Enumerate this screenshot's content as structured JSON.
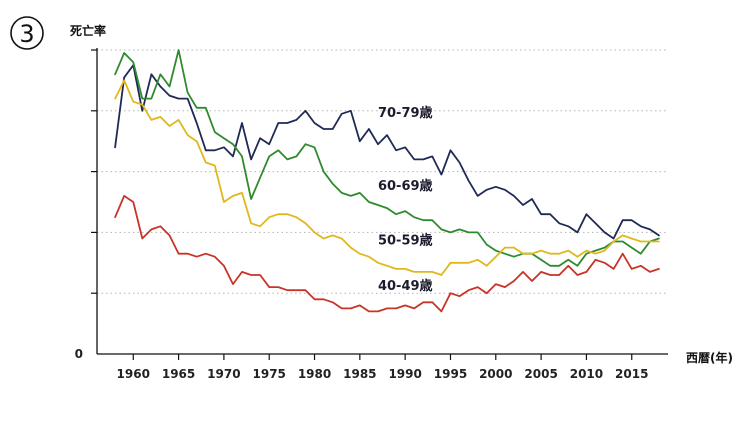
{
  "badge": "3",
  "chart_data": {
    "type": "line",
    "title": "",
    "ylabel": "死亡率",
    "xlabel": "西暦(年)",
    "y_zero_label": "0",
    "xlim": [
      1956,
      2019
    ],
    "ylim": [
      0,
      100
    ],
    "x_ticks": [
      1960,
      1965,
      1970,
      1975,
      1980,
      1985,
      1990,
      1995,
      2000,
      2005,
      2010,
      2015
    ],
    "y_gridlines": [
      20,
      40,
      60,
      80,
      100
    ],
    "grid": "dotted horizontal",
    "series": [
      {
        "name": "70-79歳",
        "color": "#1f2a55",
        "points": [
          [
            1958,
            68
          ],
          [
            1959,
            91
          ],
          [
            1960,
            95
          ],
          [
            1961,
            80
          ],
          [
            1962,
            92
          ],
          [
            1963,
            88
          ],
          [
            1964,
            85
          ],
          [
            1965,
            84
          ],
          [
            1966,
            84
          ],
          [
            1967,
            76
          ],
          [
            1968,
            67
          ],
          [
            1969,
            67
          ],
          [
            1970,
            68
          ],
          [
            1971,
            65
          ],
          [
            1972,
            76
          ],
          [
            1973,
            64
          ],
          [
            1974,
            71
          ],
          [
            1975,
            69
          ],
          [
            1976,
            76
          ],
          [
            1977,
            76
          ],
          [
            1978,
            77
          ],
          [
            1979,
            80
          ],
          [
            1980,
            76
          ],
          [
            1981,
            74
          ],
          [
            1982,
            74
          ],
          [
            1983,
            79
          ],
          [
            1984,
            80
          ],
          [
            1985,
            70
          ],
          [
            1986,
            74
          ],
          [
            1987,
            69
          ],
          [
            1988,
            72
          ],
          [
            1989,
            67
          ],
          [
            1990,
            68
          ],
          [
            1991,
            64
          ],
          [
            1992,
            64
          ],
          [
            1993,
            65
          ],
          [
            1994,
            59
          ],
          [
            1995,
            67
          ],
          [
            1996,
            63
          ],
          [
            1997,
            57
          ],
          [
            1998,
            52
          ],
          [
            1999,
            54
          ],
          [
            2000,
            55
          ],
          [
            2001,
            54
          ],
          [
            2002,
            52
          ],
          [
            2003,
            49
          ],
          [
            2004,
            51
          ],
          [
            2005,
            46
          ],
          [
            2006,
            46
          ],
          [
            2007,
            43
          ],
          [
            2008,
            42
          ],
          [
            2009,
            40
          ],
          [
            2010,
            46
          ],
          [
            2011,
            43
          ],
          [
            2012,
            40
          ],
          [
            2013,
            38
          ],
          [
            2014,
            44
          ],
          [
            2015,
            44
          ],
          [
            2016,
            42
          ],
          [
            2017,
            41
          ],
          [
            2018,
            39
          ]
        ]
      },
      {
        "name": "60-69歳",
        "color": "#2e8b2e",
        "points": [
          [
            1958,
            92
          ],
          [
            1959,
            99
          ],
          [
            1960,
            96
          ],
          [
            1961,
            84
          ],
          [
            1962,
            84
          ],
          [
            1963,
            92
          ],
          [
            1964,
            88
          ],
          [
            1965,
            100
          ],
          [
            1966,
            86
          ],
          [
            1967,
            81
          ],
          [
            1968,
            81
          ],
          [
            1969,
            73
          ],
          [
            1970,
            71
          ],
          [
            1971,
            69
          ],
          [
            1972,
            65
          ],
          [
            1973,
            51
          ],
          [
            1974,
            58
          ],
          [
            1975,
            65
          ],
          [
            1976,
            67
          ],
          [
            1977,
            64
          ],
          [
            1978,
            65
          ],
          [
            1979,
            69
          ],
          [
            1980,
            68
          ],
          [
            1981,
            60
          ],
          [
            1982,
            56
          ],
          [
            1983,
            53
          ],
          [
            1984,
            52
          ],
          [
            1985,
            53
          ],
          [
            1986,
            50
          ],
          [
            1987,
            49
          ],
          [
            1988,
            48
          ],
          [
            1989,
            46
          ],
          [
            1990,
            47
          ],
          [
            1991,
            45
          ],
          [
            1992,
            44
          ],
          [
            1993,
            44
          ],
          [
            1994,
            41
          ],
          [
            1995,
            40
          ],
          [
            1996,
            41
          ],
          [
            1997,
            40
          ],
          [
            1998,
            40
          ],
          [
            1999,
            36
          ],
          [
            2000,
            34
          ],
          [
            2001,
            33
          ],
          [
            2002,
            32
          ],
          [
            2003,
            33
          ],
          [
            2004,
            33
          ],
          [
            2005,
            31
          ],
          [
            2006,
            29
          ],
          [
            2007,
            29
          ],
          [
            2008,
            31
          ],
          [
            2009,
            29
          ],
          [
            2010,
            33
          ],
          [
            2011,
            34
          ],
          [
            2012,
            35
          ],
          [
            2013,
            37
          ],
          [
            2014,
            37
          ],
          [
            2015,
            35
          ],
          [
            2016,
            33
          ],
          [
            2017,
            37
          ],
          [
            2018,
            38
          ]
        ]
      },
      {
        "name": "50-59歳",
        "color": "#e0b81c",
        "points": [
          [
            1958,
            84
          ],
          [
            1959,
            90
          ],
          [
            1960,
            83
          ],
          [
            1961,
            82
          ],
          [
            1962,
            77
          ],
          [
            1963,
            78
          ],
          [
            1964,
            75
          ],
          [
            1965,
            77
          ],
          [
            1966,
            72
          ],
          [
            1967,
            70
          ],
          [
            1968,
            63
          ],
          [
            1969,
            62
          ],
          [
            1970,
            50
          ],
          [
            1971,
            52
          ],
          [
            1972,
            53
          ],
          [
            1973,
            43
          ],
          [
            1974,
            42
          ],
          [
            1975,
            45
          ],
          [
            1976,
            46
          ],
          [
            1977,
            46
          ],
          [
            1978,
            45
          ],
          [
            1979,
            43
          ],
          [
            1980,
            40
          ],
          [
            1981,
            38
          ],
          [
            1982,
            39
          ],
          [
            1983,
            38
          ],
          [
            1984,
            35
          ],
          [
            1985,
            33
          ],
          [
            1986,
            32
          ],
          [
            1987,
            30
          ],
          [
            1988,
            29
          ],
          [
            1989,
            28
          ],
          [
            1990,
            28
          ],
          [
            1991,
            27
          ],
          [
            1992,
            27
          ],
          [
            1993,
            27
          ],
          [
            1994,
            26
          ],
          [
            1995,
            30
          ],
          [
            1996,
            30
          ],
          [
            1997,
            30
          ],
          [
            1998,
            31
          ],
          [
            1999,
            29
          ],
          [
            2000,
            32
          ],
          [
            2001,
            35
          ],
          [
            2002,
            35
          ],
          [
            2003,
            33
          ],
          [
            2004,
            33
          ],
          [
            2005,
            34
          ],
          [
            2006,
            33
          ],
          [
            2007,
            33
          ],
          [
            2008,
            34
          ],
          [
            2009,
            32
          ],
          [
            2010,
            34
          ],
          [
            2011,
            33
          ],
          [
            2012,
            34
          ],
          [
            2013,
            37
          ],
          [
            2014,
            39
          ],
          [
            2015,
            38
          ],
          [
            2016,
            37
          ],
          [
            2017,
            37
          ],
          [
            2018,
            37
          ]
        ]
      },
      {
        "name": "40-49歳",
        "color": "#c83428",
        "points": [
          [
            1958,
            45
          ],
          [
            1959,
            52
          ],
          [
            1960,
            50
          ],
          [
            1961,
            38
          ],
          [
            1962,
            41
          ],
          [
            1963,
            42
          ],
          [
            1964,
            39
          ],
          [
            1965,
            33
          ],
          [
            1966,
            33
          ],
          [
            1967,
            32
          ],
          [
            1968,
            33
          ],
          [
            1969,
            32
          ],
          [
            1970,
            29
          ],
          [
            1971,
            23
          ],
          [
            1972,
            27
          ],
          [
            1973,
            26
          ],
          [
            1974,
            26
          ],
          [
            1975,
            22
          ],
          [
            1976,
            22
          ],
          [
            1977,
            21
          ],
          [
            1978,
            21
          ],
          [
            1979,
            21
          ],
          [
            1980,
            18
          ],
          [
            1981,
            18
          ],
          [
            1982,
            17
          ],
          [
            1983,
            15
          ],
          [
            1984,
            15
          ],
          [
            1985,
            16
          ],
          [
            1986,
            14
          ],
          [
            1987,
            14
          ],
          [
            1988,
            15
          ],
          [
            1989,
            15
          ],
          [
            1990,
            16
          ],
          [
            1991,
            15
          ],
          [
            1992,
            17
          ],
          [
            1993,
            17
          ],
          [
            1994,
            14
          ],
          [
            1995,
            20
          ],
          [
            1996,
            19
          ],
          [
            1997,
            21
          ],
          [
            1998,
            22
          ],
          [
            1999,
            20
          ],
          [
            2000,
            23
          ],
          [
            2001,
            22
          ],
          [
            2002,
            24
          ],
          [
            2003,
            27
          ],
          [
            2004,
            24
          ],
          [
            2005,
            27
          ],
          [
            2006,
            26
          ],
          [
            2007,
            26
          ],
          [
            2008,
            29
          ],
          [
            2009,
            26
          ],
          [
            2010,
            27
          ],
          [
            2011,
            31
          ],
          [
            2012,
            30
          ],
          [
            2013,
            28
          ],
          [
            2014,
            33
          ],
          [
            2015,
            28
          ],
          [
            2016,
            29
          ],
          [
            2017,
            27
          ],
          [
            2018,
            28
          ]
        ]
      }
    ],
    "label_positions": {
      "70-79歳": [
        1987,
        78
      ],
      "60-69歳": [
        1987,
        54
      ],
      "50-59歳": [
        1987,
        36
      ],
      "40-49歳": [
        1987,
        21
      ]
    }
  }
}
